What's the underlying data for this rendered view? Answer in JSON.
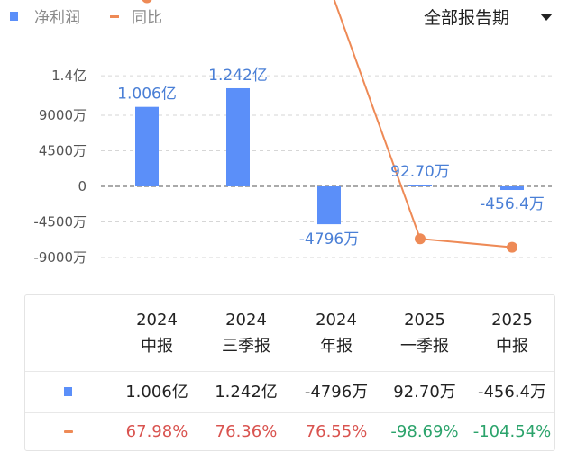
{
  "legend": {
    "bar_label": "净利润",
    "line_label": "同比"
  },
  "period_selector": {
    "label": "全部报告期"
  },
  "colors": {
    "bar": "#5b8ff9",
    "line": "#ee8a56",
    "positive_pct": "#d9534f",
    "negative_pct": "#2ba36b"
  },
  "chart_data": {
    "type": "bar",
    "categories": [
      "2024 中报",
      "2024 三季报",
      "2024 年报",
      "2025 一季报",
      "2025 中报"
    ],
    "series": [
      {
        "name": "净利润",
        "kind": "bar",
        "values": [
          10060,
          12420,
          -4796,
          92.7,
          -456.4
        ],
        "unit": "万",
        "labels": [
          "1.006亿",
          "1.242亿",
          "-4796万",
          "92.70万",
          "-456.4万"
        ]
      },
      {
        "name": "同比",
        "kind": "line",
        "values": [
          67.98,
          76.36,
          76.55,
          -98.69,
          -104.54
        ],
        "unit": "%"
      }
    ],
    "yticks": [
      "1.4亿",
      "9000万",
      "4500万",
      "0",
      "-4500万",
      "-9000万"
    ],
    "ytick_values": [
      14000,
      9000,
      4500,
      0,
      -4500,
      -9000
    ],
    "ylim": [
      -9000,
      14000
    ],
    "grid": "dashed horizontal",
    "legend_position": "top-left"
  },
  "table": {
    "headers": [
      {
        "year": "2024",
        "period": "中报"
      },
      {
        "year": "2024",
        "period": "三季报"
      },
      {
        "year": "2024",
        "period": "年报"
      },
      {
        "year": "2025",
        "period": "一季报"
      },
      {
        "year": "2025",
        "period": "中报"
      }
    ],
    "profit_row": [
      "1.006亿",
      "1.242亿",
      "-4796万",
      "92.70万",
      "-456.4万"
    ],
    "yoy_row": [
      "67.98%",
      "76.36%",
      "76.55%",
      "-98.69%",
      "-104.54%"
    ]
  }
}
